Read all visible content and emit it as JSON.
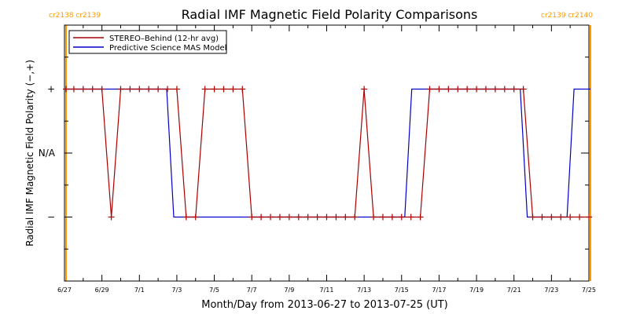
{
  "chart_data": {
    "type": "line",
    "title": "Radial IMF Magnetic Field Polarity Comparisons",
    "xlabel": "Month/Day from 2013-06-27 to 2013-07-25 (UT)",
    "ylabel": "Radial IMF Magnetic Field Polarity (−,+)",
    "xlim": [
      "2013-06-27",
      "2013-07-25"
    ],
    "ylim": [
      -2,
      2
    ],
    "x_tick_labels": [
      "6/27",
      "6/29",
      "7/1",
      "7/3",
      "7/5",
      "7/7",
      "7/9",
      "7/11",
      "7/13",
      "7/15",
      "7/17",
      "7/19",
      "7/21",
      "7/23",
      "7/25"
    ],
    "y_tick_labels": [
      {
        "value": 1,
        "label": "+"
      },
      {
        "value": 0,
        "label": "N/A"
      },
      {
        "value": -1,
        "label": "−"
      }
    ],
    "carrington_rotations": [
      {
        "x": "2013-06-27 02:00",
        "labels": [
          "cr2138",
          "cr2139"
        ],
        "side": "left"
      },
      {
        "x": "2013-07-25 02:00",
        "labels": [
          "cr2139",
          "cr2140"
        ],
        "side": "right"
      }
    ],
    "rotation_line_color": "#ff9900",
    "legend_position": "top-left",
    "series": [
      {
        "name": "STEREO–Behind (12-hr avg)",
        "color": "#aa0000",
        "marker": "plus",
        "points": [
          [
            "2013-06-27 02:00",
            1
          ],
          [
            "2013-06-27 12:00",
            1
          ],
          [
            "2013-06-28 00:00",
            1
          ],
          [
            "2013-06-28 12:00",
            1
          ],
          [
            "2013-06-29 00:00",
            1
          ],
          [
            "2013-06-29 12:00",
            -1
          ],
          [
            "2013-06-30 00:00",
            1
          ],
          [
            "2013-06-30 12:00",
            1
          ],
          [
            "2013-07-01 00:00",
            1
          ],
          [
            "2013-07-01 12:00",
            1
          ],
          [
            "2013-07-02 00:00",
            1
          ],
          [
            "2013-07-02 12:00",
            1
          ],
          [
            "2013-07-03 00:00",
            1
          ],
          [
            "2013-07-03 12:00",
            -1
          ],
          [
            "2013-07-04 00:00",
            -1
          ],
          [
            "2013-07-04 12:00",
            1
          ],
          [
            "2013-07-05 00:00",
            1
          ],
          [
            "2013-07-05 12:00",
            1
          ],
          [
            "2013-07-06 00:00",
            1
          ],
          [
            "2013-07-06 12:00",
            1
          ],
          [
            "2013-07-07 00:00",
            -1
          ],
          [
            "2013-07-07 12:00",
            -1
          ],
          [
            "2013-07-08 00:00",
            -1
          ],
          [
            "2013-07-08 12:00",
            -1
          ],
          [
            "2013-07-09 00:00",
            -1
          ],
          [
            "2013-07-09 12:00",
            -1
          ],
          [
            "2013-07-10 00:00",
            -1
          ],
          [
            "2013-07-10 12:00",
            -1
          ],
          [
            "2013-07-11 00:00",
            -1
          ],
          [
            "2013-07-11 12:00",
            -1
          ],
          [
            "2013-07-12 00:00",
            -1
          ],
          [
            "2013-07-12 12:00",
            -1
          ],
          [
            "2013-07-13 00:00",
            1
          ],
          [
            "2013-07-13 12:00",
            -1
          ],
          [
            "2013-07-14 00:00",
            -1
          ],
          [
            "2013-07-14 12:00",
            -1
          ],
          [
            "2013-07-15 00:00",
            -1
          ],
          [
            "2013-07-15 12:00",
            -1
          ],
          [
            "2013-07-16 00:00",
            -1
          ],
          [
            "2013-07-16 12:00",
            1
          ],
          [
            "2013-07-17 00:00",
            1
          ],
          [
            "2013-07-17 12:00",
            1
          ],
          [
            "2013-07-18 00:00",
            1
          ],
          [
            "2013-07-18 12:00",
            1
          ],
          [
            "2013-07-19 00:00",
            1
          ],
          [
            "2013-07-19 12:00",
            1
          ],
          [
            "2013-07-20 00:00",
            1
          ],
          [
            "2013-07-20 12:00",
            1
          ],
          [
            "2013-07-21 00:00",
            1
          ],
          [
            "2013-07-21 12:00",
            1
          ],
          [
            "2013-07-22 00:00",
            -1
          ],
          [
            "2013-07-22 12:00",
            -1
          ],
          [
            "2013-07-23 00:00",
            -1
          ],
          [
            "2013-07-23 12:00",
            -1
          ],
          [
            "2013-07-24 00:00",
            -1
          ],
          [
            "2013-07-24 12:00",
            -1
          ],
          [
            "2013-07-25 00:00",
            -1
          ]
        ]
      },
      {
        "name": "Predictive Science MAS Model",
        "color": "#0000cc",
        "marker": "none",
        "points": [
          [
            "2013-06-27 02:00",
            1
          ],
          [
            "2013-07-02 11:00",
            1
          ],
          [
            "2013-07-02 20:00",
            -1
          ],
          [
            "2013-07-15 04:00",
            -1
          ],
          [
            "2013-07-15 13:00",
            1
          ],
          [
            "2013-07-21 08:00",
            1
          ],
          [
            "2013-07-21 17:00",
            -1
          ],
          [
            "2013-07-23 20:00",
            -1
          ],
          [
            "2013-07-24 05:00",
            1
          ],
          [
            "2013-07-25 02:00",
            1
          ]
        ]
      }
    ]
  }
}
